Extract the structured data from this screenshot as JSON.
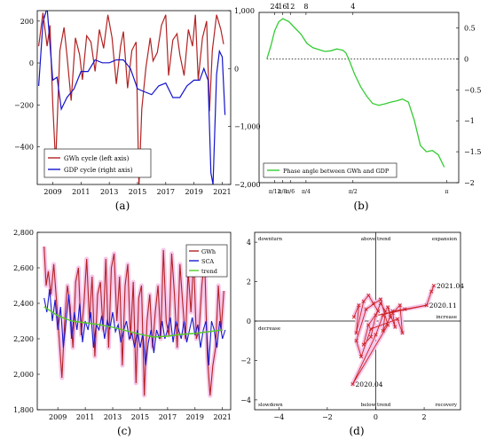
{
  "chart_data": [
    {
      "panel": "(a)",
      "type": "line",
      "x_ticks": [
        "2009",
        "2011",
        "2013",
        "2015",
        "2017",
        "2019",
        "2021"
      ],
      "y_left_ticks": [
        "200",
        "0",
        "−200",
        "−400"
      ],
      "y_right_ticks": [
        "1,000",
        "0",
        "−1,000",
        "−2,000"
      ],
      "ylim_left": [
        -580,
        250
      ],
      "ylim_right": [
        -2000,
        1000
      ],
      "series": [
        {
          "name": "GWh cycle (left axis)",
          "axis": "left",
          "color": "#b22222",
          "x": [
            2008.0,
            2008.3,
            2008.6,
            2008.8,
            2009.0,
            2009.2,
            2009.5,
            2009.8,
            2010.0,
            2010.3,
            2010.6,
            2010.9,
            2011.1,
            2011.4,
            2011.7,
            2012.0,
            2012.3,
            2012.6,
            2012.9,
            2013.2,
            2013.5,
            2013.8,
            2014.0,
            2014.3,
            2014.6,
            2014.9,
            2015.1,
            2015.3,
            2015.6,
            2015.9,
            2016.1,
            2016.4,
            2016.7,
            2017.0,
            2017.2,
            2017.5,
            2017.8,
            2018.0,
            2018.3,
            2018.6,
            2018.9,
            2019.1,
            2019.3,
            2019.6,
            2019.9,
            2020.1,
            2020.3,
            2020.6,
            2020.9,
            2021.1
          ],
          "y": [
            80,
            240,
            80,
            180,
            -200,
            -480,
            60,
            170,
            40,
            -180,
            120,
            40,
            -80,
            130,
            100,
            -40,
            160,
            70,
            230,
            120,
            -100,
            80,
            150,
            -120,
            60,
            100,
            -590,
            -220,
            -20,
            120,
            10,
            50,
            180,
            230,
            -60,
            110,
            140,
            40,
            -60,
            160,
            80,
            230,
            -80,
            120,
            200,
            -230,
            60,
            230,
            160,
            90
          ]
        },
        {
          "name": "GDP cycle (right axis)",
          "axis": "right",
          "color": "#1414cc",
          "x": [
            2008.0,
            2008.3,
            2008.6,
            2009.0,
            2009.3,
            2009.6,
            2010.0,
            2010.5,
            2011.0,
            2011.5,
            2012.0,
            2012.5,
            2013.0,
            2013.5,
            2014.0,
            2014.5,
            2015.0,
            2015.5,
            2016.0,
            2016.5,
            2017.0,
            2017.5,
            2018.0,
            2018.5,
            2019.0,
            2019.4,
            2019.7,
            2020.0,
            2020.2,
            2020.35,
            2020.6,
            2020.8,
            2021.0,
            2021.2
          ],
          "y": [
            -300,
            800,
            1050,
            -200,
            -150,
            -700,
            -500,
            -350,
            -50,
            -50,
            150,
            100,
            100,
            150,
            150,
            0,
            -350,
            -400,
            -450,
            -300,
            -250,
            -500,
            -500,
            -300,
            -200,
            -200,
            0,
            -200,
            -1800,
            -2000,
            -100,
            300,
            200,
            -800
          ]
        }
      ]
    },
    {
      "panel": "(b)",
      "type": "line",
      "top_ticks": [
        "24",
        "16",
        "12",
        "8",
        "4"
      ],
      "x_ticks": [
        "π/12",
        "π/8",
        "π/6",
        "π/4",
        "π/2",
        "π"
      ],
      "y_ticks": [
        "0.5",
        "0",
        "−0.5",
        "−1",
        "−1.5",
        "−2"
      ],
      "ylim": [
        -2,
        0.75
      ],
      "series": [
        {
          "name": "Phase angle between GWh and GDP",
          "color": "#33cc33",
          "x": [
            0.13,
            0.2,
            0.26,
            0.33,
            0.4,
            0.5,
            0.6,
            0.7,
            0.8,
            0.9,
            1.0,
            1.1,
            1.2,
            1.3,
            1.4,
            1.45,
            1.5,
            1.6,
            1.7,
            1.8,
            1.9,
            2.0,
            2.1,
            2.2,
            2.3,
            2.4,
            2.5,
            2.6,
            2.7,
            2.8,
            2.9,
            3.0,
            3.1
          ],
          "y": [
            0.0,
            0.22,
            0.45,
            0.6,
            0.65,
            0.6,
            0.5,
            0.4,
            0.25,
            0.18,
            0.15,
            0.12,
            0.13,
            0.16,
            0.14,
            0.1,
            0.0,
            -0.25,
            -0.45,
            -0.6,
            -0.72,
            -0.75,
            -0.73,
            -0.7,
            -0.68,
            -0.65,
            -0.7,
            -1.0,
            -1.4,
            -1.5,
            -1.48,
            -1.55,
            -1.75
          ]
        }
      ],
      "zero_line": "dotted"
    },
    {
      "panel": "(c)",
      "type": "line",
      "x_ticks": [
        "2009",
        "2011",
        "2013",
        "2015",
        "2017",
        "2019",
        "2021"
      ],
      "y_ticks": [
        "2,800",
        "2,600",
        "2,400",
        "2,200",
        "2,000",
        "1,800"
      ],
      "ylim": [
        1800,
        2800
      ],
      "series": [
        {
          "name": "GWh",
          "color": "#b22222",
          "x": [
            2008.0,
            2008.15,
            2008.3,
            2008.5,
            2008.7,
            2008.9,
            2009.1,
            2009.3,
            2009.5,
            2009.7,
            2009.9,
            2010.1,
            2010.3,
            2010.5,
            2010.7,
            2010.9,
            2011.1,
            2011.3,
            2011.5,
            2011.7,
            2011.9,
            2012.1,
            2012.3,
            2012.5,
            2012.7,
            2012.9,
            2013.1,
            2013.3,
            2013.5,
            2013.7,
            2013.9,
            2014.1,
            2014.3,
            2014.5,
            2014.7,
            2014.9,
            2015.1,
            2015.3,
            2015.5,
            2015.7,
            2015.9,
            2016.1,
            2016.3,
            2016.5,
            2016.7,
            2016.9,
            2017.1,
            2017.3,
            2017.5,
            2017.7,
            2017.9,
            2018.1,
            2018.3,
            2018.5,
            2018.7,
            2018.9,
            2019.1,
            2019.3,
            2019.5,
            2019.7,
            2019.9,
            2020.1,
            2020.3,
            2020.5,
            2020.7,
            2020.9,
            2021.1
          ],
          "y": [
            2720,
            2500,
            2580,
            2450,
            2620,
            2420,
            2200,
            1980,
            2300,
            2500,
            2380,
            2150,
            2520,
            2600,
            2220,
            2400,
            2650,
            2300,
            2550,
            2100,
            2450,
            2520,
            2250,
            2650,
            2150,
            2600,
            2680,
            2300,
            2550,
            2050,
            2500,
            2620,
            2200,
            2520,
            1950,
            2430,
            2500,
            1880,
            2300,
            2450,
            2150,
            2350,
            2500,
            2200,
            2700,
            2300,
            2220,
            2680,
            2450,
            2150,
            2620,
            2400,
            2200,
            2580,
            2350,
            2650,
            2200,
            2250,
            2500,
            2650,
            2100,
            1880,
            2050,
            2150,
            2500,
            2250,
            2470
          ]
        },
        {
          "name": "SCA",
          "color": "#1a1acc",
          "x": [
            2008.0,
            2008.2,
            2008.4,
            2008.6,
            2008.8,
            2009.0,
            2009.2,
            2009.4,
            2009.6,
            2009.8,
            2010.0,
            2010.2,
            2010.4,
            2010.6,
            2010.8,
            2011.0,
            2011.2,
            2011.4,
            2011.6,
            2011.8,
            2012.0,
            2012.2,
            2012.4,
            2012.6,
            2012.8,
            2013.0,
            2013.2,
            2013.4,
            2013.6,
            2013.8,
            2014.0,
            2014.2,
            2014.4,
            2014.6,
            2014.8,
            2015.0,
            2015.2,
            2015.4,
            2015.6,
            2015.8,
            2016.0,
            2016.2,
            2016.4,
            2016.6,
            2016.8,
            2017.0,
            2017.2,
            2017.4,
            2017.6,
            2017.8,
            2018.0,
            2018.2,
            2018.4,
            2018.6,
            2018.8,
            2019.0,
            2019.2,
            2019.4,
            2019.6,
            2019.8,
            2020.0,
            2020.2,
            2020.4,
            2020.6,
            2020.8,
            2021.0,
            2021.2
          ],
          "y": [
            2430,
            2350,
            2480,
            2300,
            2420,
            2250,
            2380,
            2150,
            2300,
            2450,
            2200,
            2350,
            2250,
            2400,
            2180,
            2300,
            2250,
            2350,
            2150,
            2280,
            2250,
            2330,
            2200,
            2300,
            2260,
            2350,
            2240,
            2280,
            2180,
            2250,
            2300,
            2200,
            2230,
            2150,
            2250,
            2150,
            2230,
            2050,
            2180,
            2250,
            2120,
            2250,
            2200,
            2300,
            2200,
            2250,
            2320,
            2180,
            2300,
            2250,
            2200,
            2300,
            2180,
            2250,
            2320,
            2220,
            2280,
            2150,
            2250,
            2300,
            2050,
            2300,
            2250,
            2150,
            2300,
            2200,
            2250
          ]
        },
        {
          "name": "trend",
          "color": "#55cc22",
          "x": [
            2008.0,
            2009.0,
            2010.0,
            2011.0,
            2012.0,
            2013.0,
            2014.0,
            2015.0,
            2016.0,
            2017.0,
            2018.0,
            2019.0,
            2020.0,
            2021.0
          ],
          "y": [
            2380,
            2330,
            2300,
            2290,
            2280,
            2265,
            2245,
            2225,
            2210,
            2215,
            2225,
            2230,
            2240,
            2250
          ]
        }
      ]
    },
    {
      "panel": "(d)",
      "type": "scatter",
      "x_ticks": [
        "−4",
        "−2",
        "0",
        "2"
      ],
      "y_ticks": [
        "4",
        "2",
        "0",
        "−2",
        "−4"
      ],
      "xlim": [
        -5,
        3.5
      ],
      "ylim": [
        -4.5,
        4.5
      ],
      "region_labels": [
        "downturn",
        "above trend",
        "expansion",
        "decrease",
        "increase",
        "slowdown",
        "below trend",
        "recovery"
      ],
      "point_labels": [
        {
          "text": "2021.04",
          "x": 2.4,
          "y": 1.8
        },
        {
          "text": "2020.11",
          "x": 2.1,
          "y": 0.8
        },
        {
          "text": "2020.04",
          "x": -0.95,
          "y": -3.2
        }
      ],
      "color": "#cc2222",
      "points_x": [
        -0.9,
        -0.7,
        -0.8,
        -0.5,
        -0.3,
        -0.1,
        0.1,
        -0.3,
        -0.5,
        -0.2,
        0.0,
        0.2,
        0.4,
        0.3,
        0.6,
        0.5,
        0.8,
        0.7,
        1.0,
        1.1,
        0.9,
        -0.2,
        -0.6,
        -0.8,
        -0.4,
        0.2,
        0.5,
        -0.95,
        0.0,
        0.3,
        0.7,
        1.2,
        2.1,
        2.3,
        2.4
      ],
      "points_y": [
        0.2,
        0.8,
        -0.6,
        1.0,
        1.3,
        0.9,
        0.5,
        -0.2,
        -1.2,
        -0.8,
        0.3,
        0.9,
        0.5,
        -0.5,
        0.2,
        0.7,
        -0.3,
        0.4,
        0.8,
        -0.6,
        0.1,
        -0.4,
        -1.8,
        -1.0,
        0.6,
        1.1,
        -0.2,
        -3.2,
        -0.7,
        0.3,
        0.5,
        0.6,
        0.8,
        1.5,
        1.8
      ],
      "arrow_color": "#cc2222"
    }
  ],
  "panel_labels": [
    "(a)",
    "(b)",
    "(c)",
    "(d)"
  ]
}
